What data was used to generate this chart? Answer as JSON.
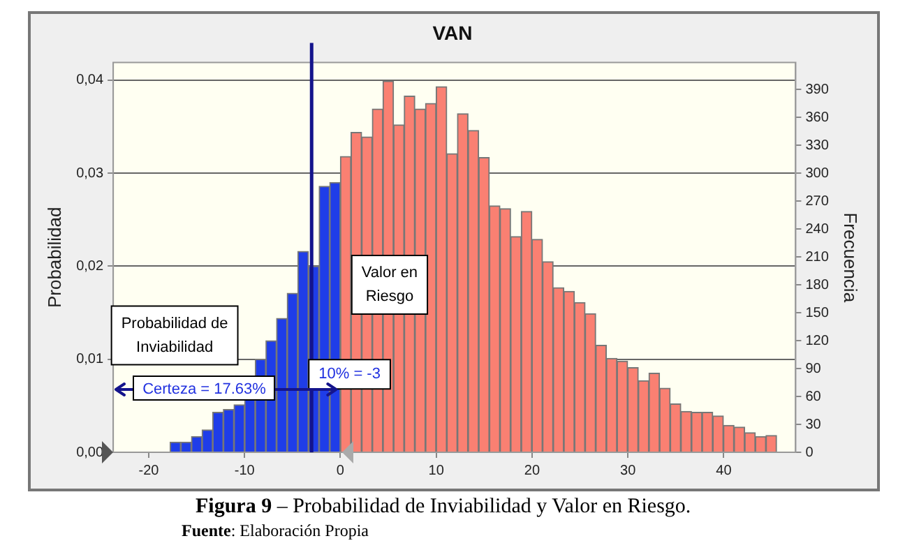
{
  "chart_data": {
    "type": "histogram",
    "title": "VAN",
    "ylabel": "Probabilidad",
    "y2label": "Frecuencia",
    "bins": [
      -17.76,
      -16.65,
      -15.54,
      -14.43,
      -13.32,
      -12.21,
      -11.1,
      -9.99,
      -8.88,
      -7.77,
      -6.66,
      -5.55,
      -4.44,
      -3.33,
      -2.22,
      -1.11,
      0,
      1.11,
      2.22,
      3.33,
      4.44,
      5.55,
      6.66,
      7.77,
      8.88,
      9.99,
      11.1,
      12.21,
      13.32,
      14.43,
      15.54,
      16.65,
      17.76,
      18.87,
      19.98,
      21.09,
      22.2,
      23.31,
      24.42,
      25.53,
      26.64,
      27.75,
      28.86,
      29.97,
      31.08,
      32.19,
      33.3,
      34.41,
      35.52,
      36.63,
      37.74,
      38.85,
      39.96,
      41.07,
      42.18,
      43.29,
      44.4,
      45.51
    ],
    "values": [
      0.0011,
      0.0011,
      0.0017,
      0.0024,
      0.0043,
      0.0046,
      0.0051,
      0.0072,
      0.01,
      0.012,
      0.0144,
      0.0171,
      0.0216,
      0.02,
      0.0286,
      0.029,
      0.0318,
      0.0344,
      0.0339,
      0.0369,
      0.0399,
      0.0352,
      0.0383,
      0.0369,
      0.0375,
      0.0393,
      0.0321,
      0.0364,
      0.0346,
      0.0317,
      0.0265,
      0.0262,
      0.0232,
      0.0259,
      0.0229,
      0.0205,
      0.0177,
      0.0173,
      0.0161,
      0.0149,
      0.0115,
      0.0101,
      0.0098,
      0.0091,
      0.0077,
      0.0085,
      0.0069,
      0.0052,
      0.0044,
      0.0043,
      0.0043,
      0.0039,
      0.0029,
      0.0027,
      0.0021,
      0.0017,
      0.0018
    ],
    "colors": [
      "#1f3de8",
      "#1f3de8",
      "#1f3de8",
      "#1f3de8",
      "#1f3de8",
      "#1f3de8",
      "#1f3de8",
      "#1f3de8",
      "#1f3de8",
      "#1f3de8",
      "#1f3de8",
      "#1f3de8",
      "#1f3de8",
      "#1f3de8",
      "#1f3de8",
      "#1f3de8",
      "#fa8072",
      "#fa8072",
      "#fa8072",
      "#fa8072",
      "#fa8072",
      "#fa8072",
      "#fa8072",
      "#fa8072",
      "#fa8072",
      "#fa8072",
      "#fa8072",
      "#fa8072",
      "#fa8072",
      "#fa8072",
      "#fa8072",
      "#fa8072",
      "#fa8072",
      "#fa8072",
      "#fa8072",
      "#fa8072",
      "#fa8072",
      "#fa8072",
      "#fa8072",
      "#fa8072",
      "#fa8072",
      "#fa8072",
      "#fa8072",
      "#fa8072",
      "#fa8072",
      "#fa8072",
      "#fa8072",
      "#fa8072",
      "#fa8072",
      "#fa8072",
      "#fa8072",
      "#fa8072",
      "#fa8072",
      "#fa8072",
      "#fa8072",
      "#fa8072",
      "#fa8072"
    ],
    "xlim": [
      -23.7,
      47.5
    ],
    "xticks": [
      -20,
      -10,
      0,
      10,
      20,
      30,
      40
    ],
    "ylim": [
      0,
      0.0419
    ],
    "yticks": [
      {
        "value": 0,
        "label": "0,00"
      },
      {
        "value": 0.01,
        "label": "0,01"
      },
      {
        "value": 0.02,
        "label": "0,02"
      },
      {
        "value": 0.03,
        "label": "0,03"
      },
      {
        "value": 0.04,
        "label": "0,04"
      }
    ],
    "y2lim": [
      0,
      419
    ],
    "y2ticks": [
      0,
      30,
      60,
      90,
      120,
      150,
      180,
      210,
      240,
      270,
      300,
      330,
      360,
      390
    ],
    "grid": "y",
    "legend": false,
    "ref_lines": [
      {
        "axis": "x",
        "value": -3,
        "label": "10% = -3",
        "color": "#14148c"
      }
    ],
    "annotations": [
      "Probabilidad de Inviabilidad",
      "Valor en Riesgo",
      "Certeza = 17.63%",
      "Figura 9 – Probabilidad de Inviabilidad y Valor en Riesgo.",
      "Fuente: Elaboración Propia"
    ]
  }
}
